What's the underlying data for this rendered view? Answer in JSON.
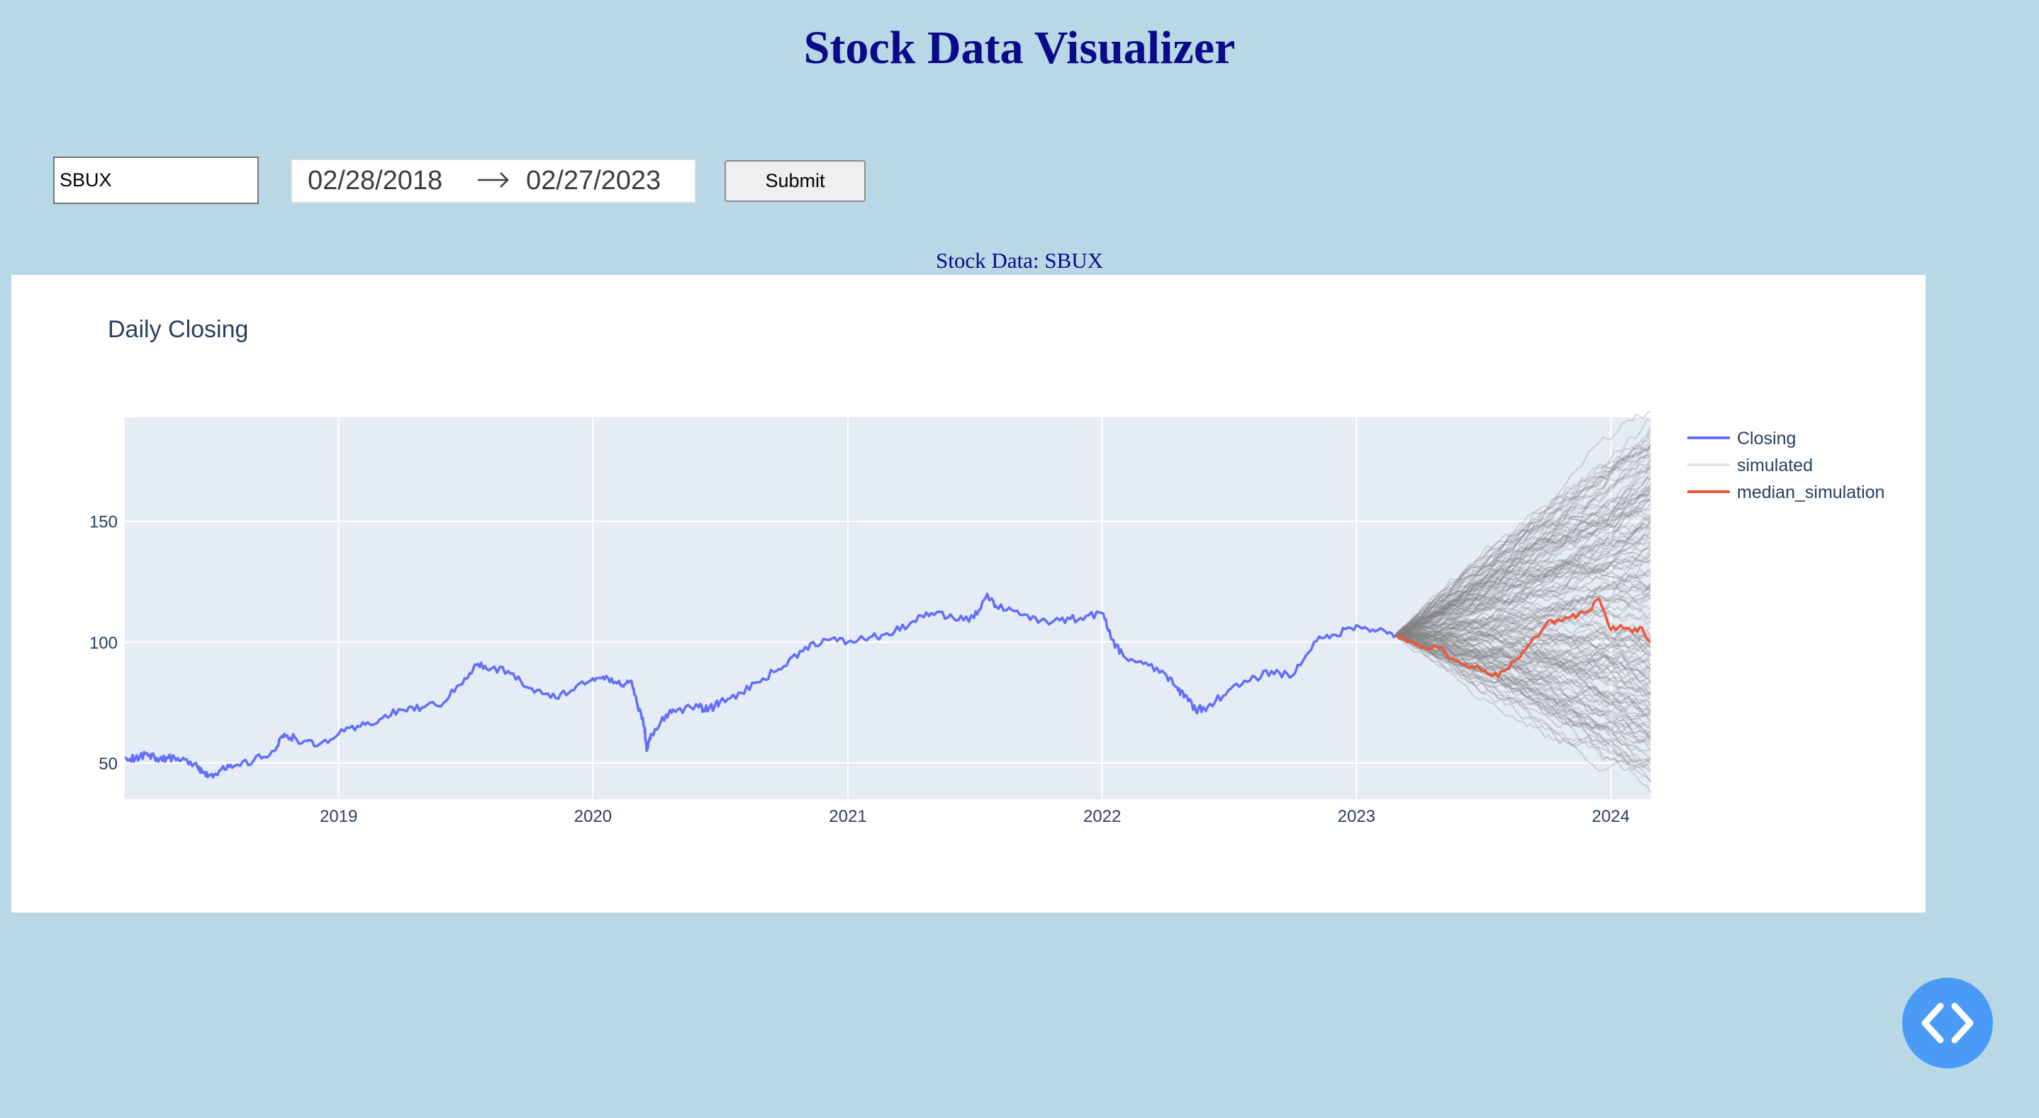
{
  "page": {
    "title": "Stock Data Visualizer"
  },
  "form": {
    "ticker_value": "SBUX",
    "date_start": "02/28/2018",
    "date_end": "02/27/2023",
    "submit_label": "Submit"
  },
  "chart_heading": "Stock Data: SBUX",
  "colors": {
    "background": "#b7d8e4",
    "title": "#0a0a8a",
    "closing": "#636efa",
    "simulated": "#808080",
    "median": "#ef553b",
    "plot_bg": "#e5ecf6",
    "fab": "#4a9bf5"
  },
  "icons": {
    "fab": "code-icon",
    "date_arrow": "arrow-right-icon"
  },
  "chart_data": {
    "type": "line",
    "title": "Daily Closing",
    "xlabel": "",
    "ylabel": "",
    "x_range": [
      "2018-02-28",
      "2024-02-27"
    ],
    "ylim": [
      35,
      193
    ],
    "x_ticks": [
      "2019",
      "2020",
      "2021",
      "2022",
      "2023",
      "2024"
    ],
    "y_ticks": [
      50,
      100,
      150
    ],
    "grid": true,
    "legend_position": "right",
    "series": [
      {
        "name": "Closing",
        "x": [
          "2018-02-28",
          "2018-03-15",
          "2018-04-01",
          "2018-04-15",
          "2018-05-01",
          "2018-05-20",
          "2018-06-10",
          "2018-06-20",
          "2018-07-01",
          "2018-07-15",
          "2018-08-01",
          "2018-09-01",
          "2018-10-01",
          "2018-10-15",
          "2018-11-01",
          "2018-12-01",
          "2019-01-01",
          "2019-02-01",
          "2019-03-01",
          "2019-04-01",
          "2019-05-01",
          "2019-06-01",
          "2019-07-01",
          "2019-07-20",
          "2019-08-01",
          "2019-09-01",
          "2019-10-01",
          "2019-11-01",
          "2019-12-01",
          "2020-01-01",
          "2020-01-20",
          "2020-02-10",
          "2020-02-25",
          "2020-03-05",
          "2020-03-15",
          "2020-03-18",
          "2020-03-25",
          "2020-04-15",
          "2020-05-01",
          "2020-06-01",
          "2020-06-15",
          "2020-07-01",
          "2020-08-01",
          "2020-09-01",
          "2020-10-01",
          "2020-11-01",
          "2020-12-01",
          "2021-01-01",
          "2021-02-01",
          "2021-03-01",
          "2021-04-01",
          "2021-05-01",
          "2021-06-01",
          "2021-07-01",
          "2021-07-20",
          "2021-08-01",
          "2021-09-01",
          "2021-10-01",
          "2021-11-01",
          "2021-12-01",
          "2022-01-01",
          "2022-01-15",
          "2022-02-01",
          "2022-03-01",
          "2022-04-01",
          "2022-04-20",
          "2022-05-01",
          "2022-05-15",
          "2022-06-01",
          "2022-07-01",
          "2022-08-01",
          "2022-09-01",
          "2022-10-01",
          "2022-11-01",
          "2022-12-01",
          "2023-01-01",
          "2023-02-01",
          "2023-02-27"
        ],
        "y": [
          52,
          52,
          54,
          52,
          52,
          51,
          50,
          46,
          45,
          47,
          48,
          51,
          55,
          62,
          60,
          57,
          62,
          65,
          68,
          72,
          73,
          75,
          85,
          91,
          89,
          88,
          81,
          77,
          80,
          85,
          86,
          82,
          84,
          74,
          65,
          55,
          62,
          70,
          72,
          73,
          72,
          75,
          79,
          85,
          90,
          98,
          101,
          100,
          102,
          103,
          108,
          112,
          110,
          110,
          120,
          115,
          113,
          108,
          109,
          110,
          112,
          101,
          94,
          91,
          87,
          80,
          78,
          72,
          73,
          80,
          84,
          88,
          86,
          100,
          103,
          107,
          105,
          103
        ]
      },
      {
        "name": "simulated",
        "x_range": [
          "2023-02-27",
          "2024-02-27"
        ],
        "start": 103,
        "end_band": [
          52,
          190
        ]
      },
      {
        "name": "median_simulation",
        "x": [
          "2023-02-27",
          "2023-03-15",
          "2023-04-01",
          "2023-04-15",
          "2023-05-01",
          "2023-05-15",
          "2023-06-01",
          "2023-06-15",
          "2023-07-01",
          "2023-07-15",
          "2023-08-01",
          "2023-08-15",
          "2023-09-01",
          "2023-09-15",
          "2023-10-01",
          "2023-10-15",
          "2023-11-01",
          "2023-11-15",
          "2023-12-01",
          "2023-12-15",
          "2024-01-01",
          "2024-01-15",
          "2024-02-01",
          "2024-02-15",
          "2024-02-27"
        ],
        "y": [
          103,
          100,
          99,
          97,
          98,
          93,
          91,
          90,
          88,
          86,
          88,
          92,
          97,
          102,
          108,
          109,
          110,
          111,
          113,
          118,
          105,
          107,
          104,
          106,
          100
        ]
      }
    ]
  }
}
